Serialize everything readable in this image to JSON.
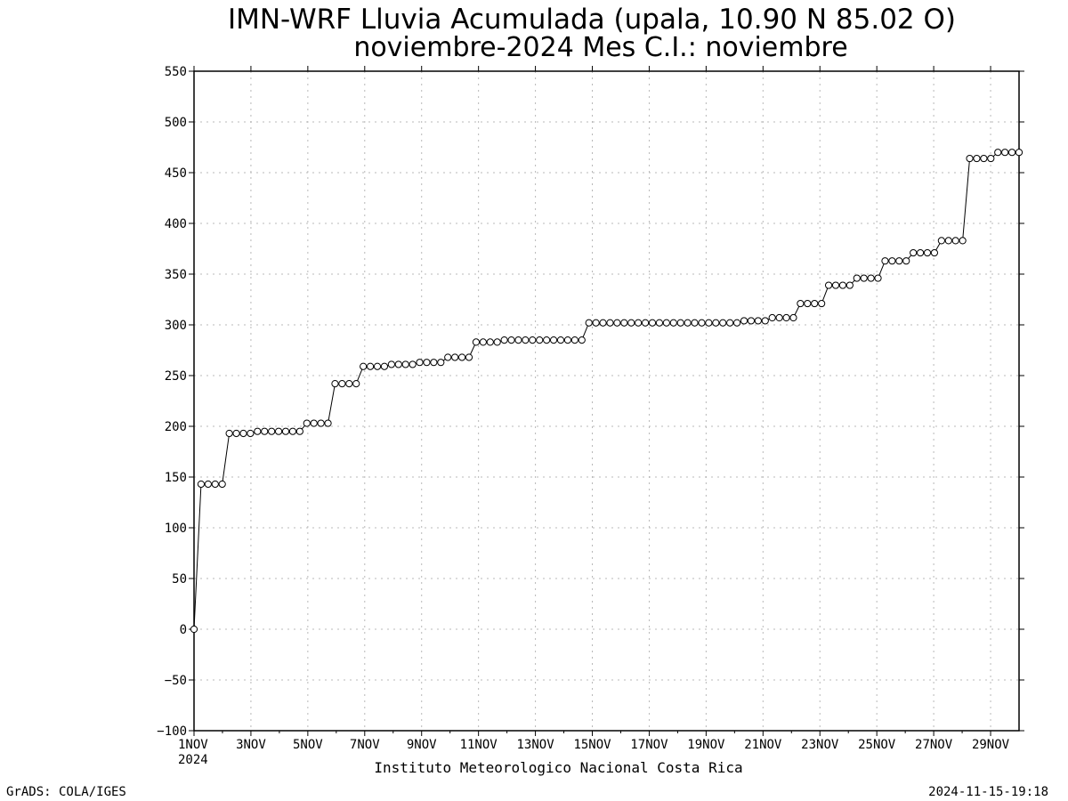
{
  "chart_data": {
    "type": "line",
    "title": "IMN-WRF  Lluvia Acumulada (upala, 10.90  N 85.02  O)",
    "subtitle": "noviembre-2024 Mes C.I.: noviembre",
    "xlabel": "",
    "ylabel": "",
    "xlim": [
      1,
      30
    ],
    "ylim": [
      -100,
      550
    ],
    "y_ticks": [
      -100,
      -50,
      0,
      50,
      100,
      150,
      200,
      250,
      300,
      350,
      400,
      450,
      500,
      550
    ],
    "x_ticks": [
      {
        "x": 1,
        "label": "1NOV"
      },
      {
        "x": 3,
        "label": "3NOV"
      },
      {
        "x": 5,
        "label": "5NOV"
      },
      {
        "x": 7,
        "label": "7NOV"
      },
      {
        "x": 9,
        "label": "9NOV"
      },
      {
        "x": 11,
        "label": "11NOV"
      },
      {
        "x": 13,
        "label": "13NOV"
      },
      {
        "x": 15,
        "label": "15NOV"
      },
      {
        "x": 17,
        "label": "17NOV"
      },
      {
        "x": 19,
        "label": "19NOV"
      },
      {
        "x": 21,
        "label": "21NOV"
      },
      {
        "x": 23,
        "label": "23NOV"
      },
      {
        "x": 25,
        "label": "25NOV"
      },
      {
        "x": 27,
        "label": "27NOV"
      },
      {
        "x": 29,
        "label": "29NOV"
      }
    ],
    "year_label": "2024",
    "grid": true,
    "series": [
      {
        "values": [
          0,
          143,
          143,
          143,
          143,
          193,
          193,
          193,
          193,
          195,
          195,
          195,
          195,
          195,
          195,
          195,
          203,
          203,
          203,
          203,
          242,
          242,
          242,
          242,
          259,
          259,
          259,
          259,
          261,
          261,
          261,
          261,
          263,
          263,
          263,
          263,
          268,
          268,
          268,
          268,
          283,
          283,
          283,
          283,
          285,
          285,
          285,
          285,
          285,
          285,
          285,
          285,
          285,
          285,
          285,
          285,
          302,
          302,
          302,
          302,
          302,
          302,
          302,
          302,
          302,
          302,
          302,
          302,
          302,
          302,
          302,
          302,
          302,
          302,
          302,
          302,
          302,
          302,
          304,
          304,
          304,
          304,
          307,
          307,
          307,
          307,
          321,
          321,
          321,
          321,
          339,
          339,
          339,
          339,
          346,
          346,
          346,
          346,
          363,
          363,
          363,
          363,
          371,
          371,
          371,
          371,
          383,
          383,
          383,
          383,
          464,
          464,
          464,
          464,
          470,
          470,
          470,
          470
        ]
      }
    ]
  },
  "footer": {
    "institution": "Instituto Meteorologico Nacional Costa Rica",
    "left": "GrADS: COLA/IGES",
    "timestamp": "2024-11-15-19:18"
  },
  "colors": {
    "line": "#000000",
    "grid": "#b8b8b8",
    "marker_fill": "#ffffff"
  }
}
